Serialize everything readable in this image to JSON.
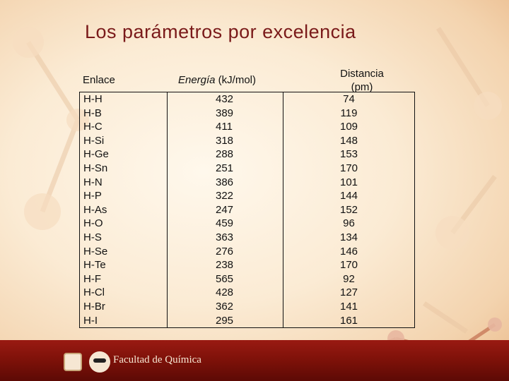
{
  "slide": {
    "title": "Los parámetros por excelencia"
  },
  "table": {
    "headers": {
      "bond": "Enlace",
      "energy_italic": "Energía",
      "energy_unit": " (kJ/mol)",
      "distance_line1": "Distancia",
      "distance_line2": "(pm)"
    },
    "rows": [
      {
        "bond": "H-H",
        "energy": "432",
        "distance": "74"
      },
      {
        "bond": "H-B",
        "energy": "389",
        "distance": "119"
      },
      {
        "bond": "H-C",
        "energy": "411",
        "distance": "109"
      },
      {
        "bond": "H-Si",
        "energy": "318",
        "distance": "148"
      },
      {
        "bond": "H-Ge",
        "energy": "288",
        "distance": "153"
      },
      {
        "bond": "H-Sn",
        "energy": "251",
        "distance": "170"
      },
      {
        "bond": "H-N",
        "energy": "386",
        "distance": "101"
      },
      {
        "bond": "H-P",
        "energy": "322",
        "distance": "144"
      },
      {
        "bond": "H-As",
        "energy": "247",
        "distance": "152"
      },
      {
        "bond": "H-O",
        "energy": "459",
        "distance": "96"
      },
      {
        "bond": "H-S",
        "energy": "363",
        "distance": "134"
      },
      {
        "bond": "H-Se",
        "energy": "276",
        "distance": "146"
      },
      {
        "bond": "H-Te",
        "energy": "238",
        "distance": "170"
      },
      {
        "bond": "H-F",
        "energy": "565",
        "distance": "92"
      },
      {
        "bond": "H-Cl",
        "energy": "428",
        "distance": "127"
      },
      {
        "bond": "H-Br",
        "energy": "362",
        "distance": "141"
      },
      {
        "bond": "H-I",
        "energy": "295",
        "distance": "161"
      }
    ]
  },
  "footer": {
    "institution": "Facultad de Química",
    "logo_unam": "unam-seal-icon",
    "logo_fq": "faculty-logo-icon"
  },
  "colors": {
    "title": "#7a1a1a",
    "footer_bar": "#7d1109"
  }
}
